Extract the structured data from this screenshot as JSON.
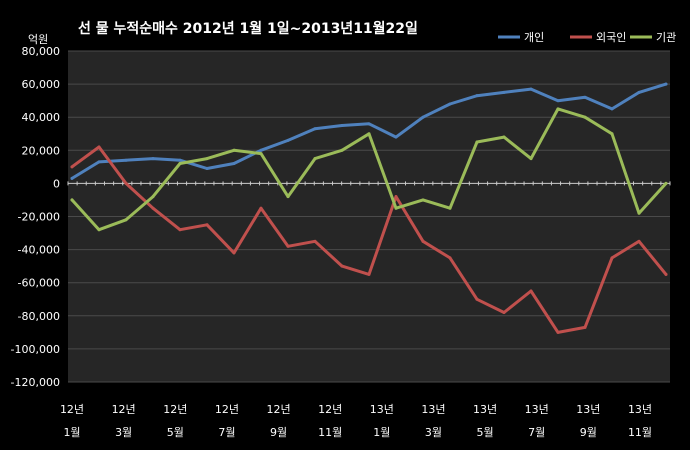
{
  "chart_data": {
    "type": "line",
    "title": "선 물 누적순매수 2012년 1월 1일~2013년11월22일",
    "ylabel": "억원",
    "xlabel": "",
    "ylim": [
      -120000,
      80000
    ],
    "yticks": [
      80000,
      60000,
      40000,
      20000,
      0,
      -20000,
      -40000,
      -60000,
      -80000,
      -100000,
      -120000
    ],
    "ytick_labels": [
      "80,000",
      "60,000",
      "40,000",
      "20,000",
      "0",
      "-20,000",
      "-40,000",
      "-60,000",
      "-80,000",
      "-100,000",
      "-120,000"
    ],
    "xtick_labels": [
      {
        "year": "12년",
        "month": "1월"
      },
      {
        "year": "12년",
        "month": "3월"
      },
      {
        "year": "12년",
        "month": "5월"
      },
      {
        "year": "12년",
        "month": "7월"
      },
      {
        "year": "12년",
        "month": "9월"
      },
      {
        "year": "12년",
        "month": "11월"
      },
      {
        "year": "13년",
        "month": "1월"
      },
      {
        "year": "13년",
        "month": "3월"
      },
      {
        "year": "13년",
        "month": "5월"
      },
      {
        "year": "13년",
        "month": "7월"
      },
      {
        "year": "13년",
        "month": "9월"
      },
      {
        "year": "13년",
        "month": "11월"
      }
    ],
    "grid": true,
    "legend_position": "top-right",
    "x": [
      "2012-01",
      "2012-02",
      "2012-03",
      "2012-04",
      "2012-05",
      "2012-06",
      "2012-07",
      "2012-08",
      "2012-09",
      "2012-10",
      "2012-11",
      "2012-12",
      "2013-01",
      "2013-02",
      "2013-03",
      "2013-04",
      "2013-05",
      "2013-06",
      "2013-07",
      "2013-08",
      "2013-09",
      "2013-10",
      "2013-11"
    ],
    "series": [
      {
        "name": "개인",
        "color": "#4F81BD",
        "values": [
          3000,
          13000,
          14000,
          15000,
          14000,
          9000,
          12000,
          20000,
          26000,
          33000,
          35000,
          36000,
          28000,
          40000,
          48000,
          53000,
          55000,
          57000,
          50000,
          52000,
          45000,
          55000,
          60000
        ]
      },
      {
        "name": "외국인",
        "color": "#C0504D",
        "values": [
          10000,
          22000,
          0,
          -15000,
          -28000,
          -25000,
          -42000,
          -15000,
          -38000,
          -35000,
          -50000,
          -55000,
          -8000,
          -35000,
          -45000,
          -70000,
          -78000,
          -65000,
          -90000,
          -87000,
          -45000,
          -35000,
          -55000
        ]
      },
      {
        "name": "기관",
        "color": "#9BBB59",
        "values": [
          -10000,
          -28000,
          -22000,
          -8000,
          12000,
          15000,
          20000,
          18000,
          -8000,
          15000,
          20000,
          30000,
          -15000,
          -10000,
          -15000,
          25000,
          28000,
          15000,
          45000,
          40000,
          30000,
          -18000,
          0
        ]
      }
    ]
  }
}
